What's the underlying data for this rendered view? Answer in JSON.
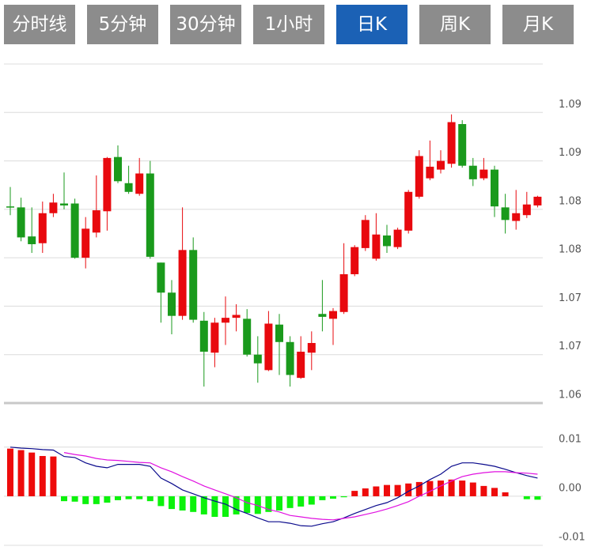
{
  "tabs": [
    {
      "label": "分时线",
      "active": false
    },
    {
      "label": "5分钟",
      "active": false
    },
    {
      "label": "30分钟",
      "active": false
    },
    {
      "label": "1小时",
      "active": false
    },
    {
      "label": "日K",
      "active": true
    },
    {
      "label": "周K",
      "active": false
    },
    {
      "label": "月K",
      "active": false
    }
  ],
  "chart_data": [
    {
      "type": "candlestick",
      "up_color": "#e8090e",
      "down_color": "#1a9a1c",
      "grid": true,
      "ylim": [
        1.06,
        1.095
      ],
      "yticks": [
        {
          "value": 1.06,
          "label": "1.06"
        },
        {
          "value": 1.065,
          "label": "1.07"
        },
        {
          "value": 1.07,
          "label": "1.07"
        },
        {
          "value": 1.075,
          "label": "1.08"
        },
        {
          "value": 1.08,
          "label": "1.08"
        },
        {
          "value": 1.085,
          "label": "1.09"
        },
        {
          "value": 1.09,
          "label": "1.09"
        }
      ],
      "open": [
        1.0803,
        1.0802,
        1.0772,
        1.0765,
        1.0796,
        1.0806,
        1.0806,
        1.075,
        1.0776,
        1.0798,
        1.0854,
        1.0827,
        1.0816,
        1.0837,
        1.0745,
        1.0714,
        1.069,
        1.0758,
        1.0685,
        1.0652,
        1.0683,
        1.0688,
        1.0687,
        1.065,
        1.0634,
        1.0681,
        1.0663,
        1.0626,
        1.0652,
        1.0692,
        1.0687,
        1.0694,
        1.0733,
        1.076,
        1.0749,
        1.0773,
        1.0761,
        1.0778,
        1.0813,
        1.0832,
        1.0841,
        1.0847,
        1.0888,
        1.0845,
        1.0832,
        1.0841,
        1.0802,
        1.0788,
        1.0794,
        1.0804
      ],
      "high": [
        1.0823,
        1.0812,
        1.0802,
        1.0808,
        1.0816,
        1.0838,
        1.0811,
        1.0792,
        1.0835,
        1.0854,
        1.0866,
        1.0845,
        1.0853,
        1.085,
        1.0745,
        1.0727,
        1.0802,
        1.0771,
        1.0694,
        1.0688,
        1.071,
        1.0702,
        1.0697,
        1.0669,
        1.0695,
        1.0692,
        1.0669,
        1.0669,
        1.0674,
        1.0727,
        1.0698,
        1.0765,
        1.0763,
        1.0794,
        1.0796,
        1.0784,
        1.0781,
        1.082,
        1.0861,
        1.0871,
        1.0861,
        1.0898,
        1.0892,
        1.0853,
        1.0853,
        1.0845,
        1.0816,
        1.082,
        1.0818,
        1.0814
      ],
      "low": [
        1.0794,
        1.0767,
        1.0755,
        1.0755,
        1.0792,
        1.08,
        1.0749,
        1.0739,
        1.0771,
        1.0778,
        1.0827,
        1.0816,
        1.0814,
        1.0749,
        1.0683,
        1.0671,
        1.0686,
        1.0683,
        1.0617,
        1.0637,
        1.066,
        1.0674,
        1.0648,
        1.0621,
        1.0633,
        1.0629,
        1.0617,
        1.0625,
        1.0634,
        1.0674,
        1.066,
        1.0692,
        1.0731,
        1.0757,
        1.0747,
        1.0755,
        1.0759,
        1.0775,
        1.0811,
        1.083,
        1.0837,
        1.0843,
        1.0843,
        1.0824,
        1.083,
        1.0792,
        1.0775,
        1.0779,
        1.0791,
        1.0802
      ],
      "close": [
        1.0802,
        1.0771,
        1.0764,
        1.0796,
        1.0807,
        1.0804,
        1.075,
        1.078,
        1.0799,
        1.0853,
        1.0829,
        1.0818,
        1.0837,
        1.0751,
        1.0714,
        1.069,
        1.0758,
        1.0686,
        1.0653,
        1.0683,
        1.0688,
        1.0691,
        1.065,
        1.0641,
        1.0682,
        1.0663,
        1.0629,
        1.0653,
        1.0662,
        1.0689,
        1.0695,
        1.0733,
        1.0761,
        1.0789,
        1.0774,
        1.0762,
        1.0779,
        1.0818,
        1.0855,
        1.0844,
        1.085,
        1.089,
        1.0845,
        1.0831,
        1.0841,
        1.0803,
        1.0789,
        1.0796,
        1.0805,
        1.0813
      ]
    },
    {
      "type": "macd",
      "grid": true,
      "ylim": [
        -0.0116,
        0.0185
      ],
      "yticks": [
        0.01,
        {
          "value": 0,
          "label": "0.00"
        },
        -0.01
      ],
      "histogram": {
        "up_color": "#ee0b0b",
        "down_color": "#0cf20c",
        "values": [
          0.0097,
          0.0094,
          0.0089,
          0.0082,
          0.0081,
          -0.001,
          -0.0011,
          -0.0016,
          -0.0016,
          -0.0013,
          -0.0008,
          -0.0006,
          -0.0006,
          -0.001,
          -0.002,
          -0.0026,
          -0.0029,
          -0.0032,
          -0.0037,
          -0.0042,
          -0.0042,
          -0.0037,
          -0.0034,
          -0.0036,
          -0.0032,
          -0.0029,
          -0.0024,
          -0.0021,
          -0.0017,
          -0.0008,
          -0.0005,
          -0.0002,
          0.0011,
          0.0016,
          0.002,
          0.0023,
          0.0023,
          0.0026,
          0.0029,
          0.0031,
          0.0032,
          0.0034,
          0.0032,
          0.0028,
          0.0021,
          0.0017,
          0.0008,
          0.0,
          -0.0006,
          -0.0007
        ]
      },
      "lines": [
        {
          "color": "#0a0a8c",
          "values": [
            0.01,
            0.0098,
            0.0097,
            0.0095,
            0.0094,
            0.0081,
            0.0079,
            0.0068,
            0.0061,
            0.0058,
            0.0065,
            0.0065,
            0.0065,
            0.0061,
            0.0037,
            0.0026,
            0.0013,
            0.0005,
            -0.0003,
            -0.001,
            -0.0016,
            -0.0027,
            -0.0035,
            -0.0044,
            -0.0052,
            -0.0052,
            -0.0055,
            -0.006,
            -0.0061,
            -0.0056,
            -0.0052,
            -0.0044,
            -0.0035,
            -0.0027,
            -0.0019,
            -0.0013,
            -0.0003,
            0.001,
            0.0021,
            0.0034,
            0.0045,
            0.0061,
            0.0068,
            0.0068,
            0.0065,
            0.0061,
            0.0055,
            0.0048,
            0.0042,
            0.0037
          ]
        },
        {
          "color": "#e010e0",
          "values": [
            null,
            null,
            null,
            null,
            null,
            0.0089,
            0.0085,
            0.0082,
            0.0077,
            0.0074,
            0.0073,
            0.0071,
            0.0069,
            0.0068,
            0.0058,
            0.005,
            0.004,
            0.0031,
            0.0021,
            0.0013,
            0.0005,
            -0.0003,
            -0.0013,
            -0.0019,
            -0.0027,
            -0.0032,
            -0.0039,
            -0.0042,
            -0.0045,
            -0.0047,
            -0.0048,
            -0.0045,
            -0.0042,
            -0.0037,
            -0.0032,
            -0.0026,
            -0.0019,
            -0.0011,
            0.0,
            0.001,
            0.0021,
            0.0031,
            0.004,
            0.0045,
            0.0048,
            0.005,
            0.005,
            0.0048,
            0.0047,
            0.0045
          ]
        }
      ]
    }
  ]
}
